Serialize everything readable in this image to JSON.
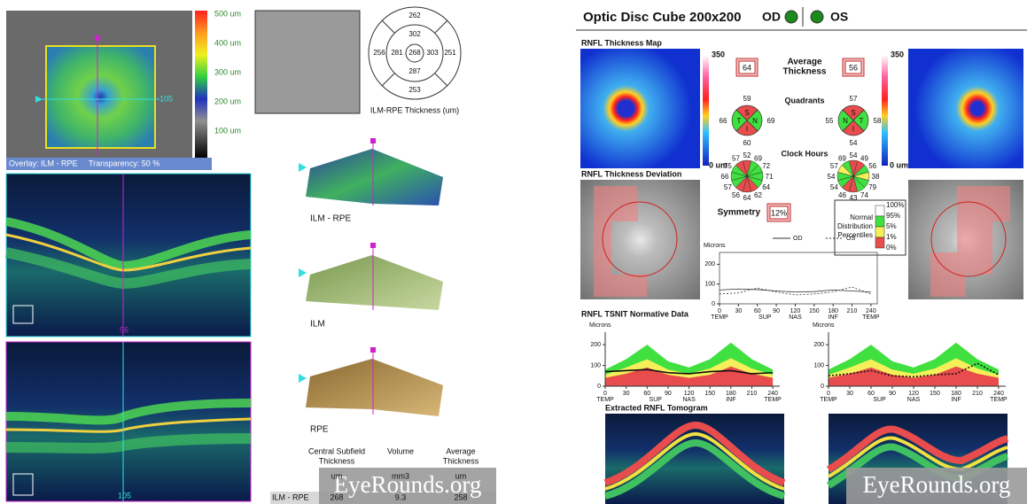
{
  "left": {
    "scale": [
      "500 um",
      "400 um",
      "300 um",
      "200 um",
      "100 um"
    ],
    "overlay": "Overlay: ILM - RPE",
    "transparency": "Transparency: 50 %",
    "fundus_marker": "105",
    "bscan1_marker": "96",
    "bscan2_marker": "105",
    "thickness_grid": {
      "values": [
        262,
        302,
        256,
        281,
        268,
        303,
        251,
        287,
        253
      ],
      "caption": "ILM-RPE Thickness (um)"
    },
    "surfaces": [
      "ILM - RPE",
      "ILM",
      "RPE"
    ],
    "table": {
      "headers": [
        [
          "Central Subfield",
          "Thickness"
        ],
        [
          "Volume"
        ],
        [
          "Average",
          "Thickness"
        ]
      ],
      "units": [
        "um",
        "mm3",
        "um"
      ],
      "row_label": "ILM - RPE",
      "values": [
        268,
        9.3,
        258
      ]
    }
  },
  "right": {
    "title": "Optic Disc Cube 200x200",
    "od": "OD",
    "os": "OS",
    "map_title": "RNFL Thickness Map",
    "scale_max": 350,
    "scale_min": "0 um",
    "average_label": [
      "Average",
      "Thickness"
    ],
    "average": {
      "od": 64,
      "os": 56
    },
    "quadrants_label": "Quadrants",
    "quadrants": {
      "od": {
        "letters": [
          "S",
          "N",
          "I",
          "T"
        ],
        "values": [
          59,
          69,
          60,
          66
        ],
        "colors": [
          "#e84c4c",
          "#3fe03f",
          "#e84c4c",
          "#3fe03f"
        ]
      },
      "os": {
        "letters": [
          "S",
          "T",
          "I",
          "N"
        ],
        "values": [
          57,
          58,
          54,
          55
        ],
        "colors": [
          "#e84c4c",
          "#3fe03f",
          "#e84c4c",
          "#3fe03f"
        ]
      }
    },
    "clock_label": "Clock Hours",
    "clock": {
      "od": {
        "values": [
          52,
          69,
          72,
          71,
          64,
          62,
          64,
          56,
          57,
          66,
          75,
          57
        ],
        "colors": [
          "#e84c4c",
          "#3fe03f",
          "#3fe03f",
          "#3fe03f",
          "#3fe03f",
          "#e84c4c",
          "#e84c4c",
          "#e84c4c",
          "#3fe03f",
          "#3fe03f",
          "#3fe03f",
          "#e84c4c"
        ]
      },
      "os": {
        "values": [
          54,
          49,
          56,
          38,
          79,
          74,
          43,
          46,
          54,
          54,
          57,
          69
        ],
        "colors": [
          "#e84c4c",
          "#e84c4c",
          "#3fe03f",
          "#f5f05a",
          "#3fe03f",
          "#3fe03f",
          "#e84c4c",
          "#e84c4c",
          "#3fe03f",
          "#3fe03f",
          "#f5f05a",
          "#3fe03f"
        ]
      }
    },
    "deviation_title": "RNFL Thickness Deviation",
    "symmetry_label": "Symmetry",
    "symmetry": "12%",
    "legend": {
      "ticks": [
        "100%",
        "95%",
        "5%",
        "1%",
        "0%"
      ],
      "label": [
        "Normal",
        "Distribution",
        "Percentiles"
      ],
      "colors": [
        "#ffffff",
        "#3fe03f",
        "#f5f05a",
        "#e84c4c"
      ]
    },
    "tsnit_small": {
      "type": "line",
      "ylabel": "Microns",
      "xlim": [
        0,
        250
      ],
      "ylim": [
        0,
        260
      ],
      "yticks": [
        0,
        100,
        200
      ],
      "xticks": [
        0,
        30,
        60,
        90,
        120,
        150,
        180,
        210,
        240
      ],
      "regions": [
        "TEMP",
        "SUP",
        "NAS",
        "INF",
        "TEMP"
      ],
      "x": [
        0,
        30,
        60,
        90,
        120,
        150,
        180,
        210,
        240
      ],
      "series": [
        {
          "name": "OD",
          "color": "#333333",
          "style": "solid",
          "values": [
            70,
            75,
            72,
            65,
            60,
            62,
            70,
            65,
            60
          ]
        },
        {
          "name": "OS",
          "color": "#333333",
          "style": "dotted",
          "values": [
            50,
            55,
            80,
            60,
            45,
            50,
            60,
            85,
            50
          ]
        }
      ]
    },
    "tsnit_title": "RNFL TSNIT Normative Data",
    "tsnit_od": {
      "type": "line",
      "ylabel": "Microns",
      "xlim": [
        0,
        250
      ],
      "ylim": [
        0,
        260
      ],
      "yticks": [
        0,
        100,
        200
      ],
      "xticks": [
        0,
        30,
        60,
        90,
        120,
        150,
        180,
        210,
        240
      ],
      "regions": [
        "TEMP",
        "SUP",
        "NAS",
        "INF",
        "TEMP"
      ],
      "x": [
        0,
        30,
        60,
        90,
        120,
        150,
        180,
        210,
        240
      ],
      "bands": [
        {
          "color": "#3fe03f",
          "values": [
            80,
            130,
            200,
            120,
            90,
            130,
            210,
            130,
            80
          ]
        },
        {
          "color": "#f5f05a",
          "values": [
            55,
            90,
            130,
            80,
            60,
            85,
            135,
            85,
            55
          ]
        },
        {
          "color": "#e84c4c",
          "values": [
            40,
            60,
            90,
            55,
            40,
            55,
            95,
            60,
            40
          ]
        }
      ],
      "series": [
        {
          "name": "OD",
          "color": "#111111",
          "style": "solid",
          "values": [
            70,
            75,
            80,
            65,
            60,
            70,
            75,
            60,
            65
          ]
        }
      ]
    },
    "tsnit_os": {
      "type": "line",
      "ylabel": "Microns",
      "xlim": [
        0,
        250
      ],
      "ylim": [
        0,
        260
      ],
      "yticks": [
        0,
        100,
        200
      ],
      "xticks": [
        0,
        30,
        60,
        90,
        120,
        150,
        180,
        210,
        240
      ],
      "regions": [
        "TEMP",
        "SUP",
        "NAS",
        "INF",
        "TEMP"
      ],
      "x": [
        0,
        30,
        60,
        90,
        120,
        150,
        180,
        210,
        240
      ],
      "bands": [
        {
          "color": "#3fe03f",
          "values": [
            80,
            130,
            200,
            120,
            90,
            130,
            210,
            130,
            80
          ]
        },
        {
          "color": "#f5f05a",
          "values": [
            55,
            90,
            130,
            80,
            60,
            85,
            135,
            85,
            55
          ]
        },
        {
          "color": "#e84c4c",
          "values": [
            40,
            60,
            90,
            55,
            40,
            55,
            95,
            60,
            40
          ]
        }
      ],
      "series": [
        {
          "name": "OS",
          "color": "#111111",
          "style": "dotted",
          "values": [
            50,
            60,
            75,
            50,
            45,
            55,
            60,
            110,
            55
          ]
        }
      ]
    },
    "tomogram_title": "Extracted RNFL Tomogram"
  },
  "watermark": "EyeRounds.org"
}
